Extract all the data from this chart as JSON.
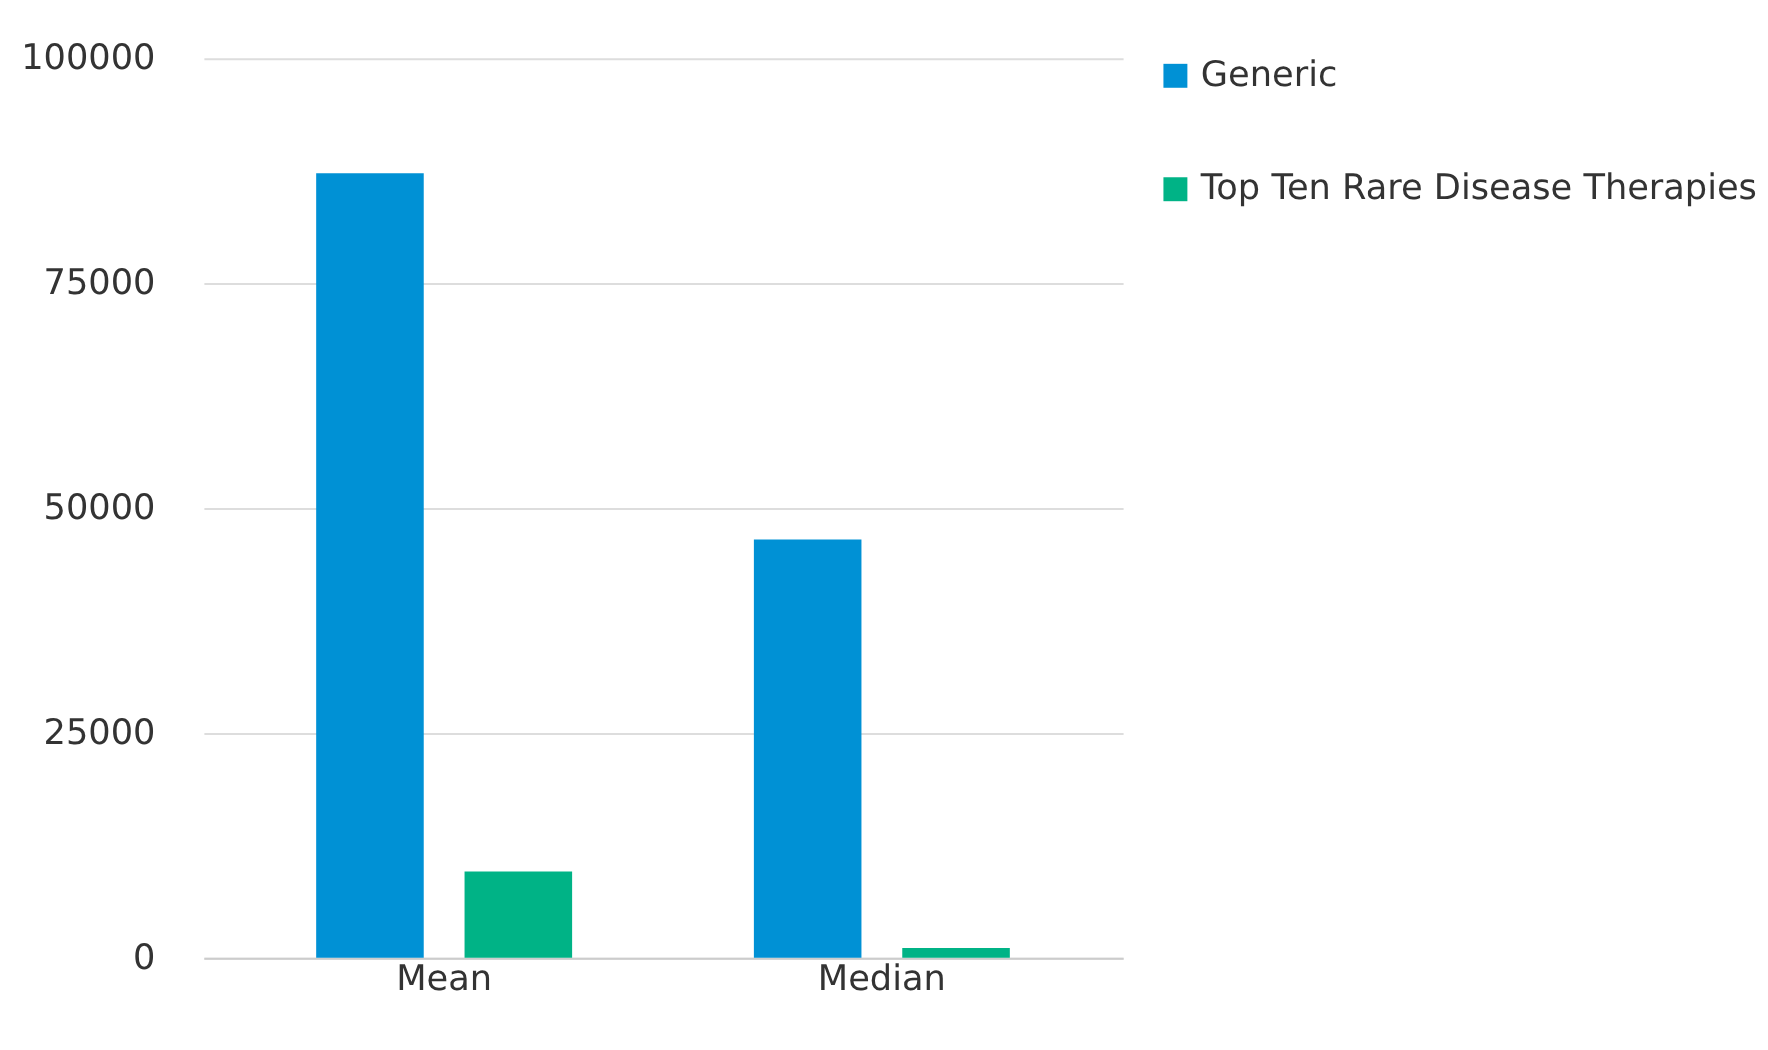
{
  "chart_data": {
    "type": "bar",
    "categories": [
      "Mean",
      "Median"
    ],
    "series": [
      {
        "name": "Generic",
        "color": "#0091d5",
        "values": [
          87200,
          46500
        ]
      },
      {
        "name": "Top Ten Rare Disease Therapies",
        "color": "#00b386",
        "values": [
          9600,
          1100
        ]
      }
    ],
    "ylim": [
      0,
      100000
    ],
    "yticks": [
      0,
      25000,
      50000,
      75000,
      100000
    ],
    "grid": "y",
    "legend": "right"
  }
}
